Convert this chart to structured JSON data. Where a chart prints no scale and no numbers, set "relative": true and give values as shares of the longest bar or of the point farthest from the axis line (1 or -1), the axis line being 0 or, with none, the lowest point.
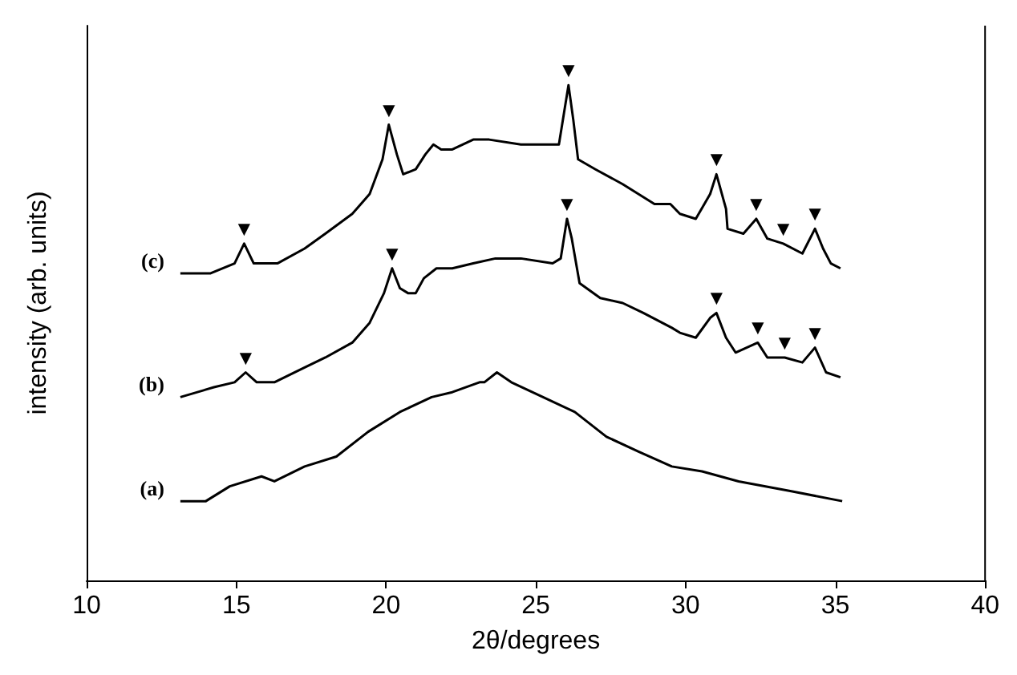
{
  "chart_data": {
    "type": "line",
    "relative": true,
    "xlabel": "2θ/degrees",
    "ylabel": "intensity (arb. units)",
    "xlim": [
      10,
      40
    ],
    "xticks": [
      10,
      15,
      20,
      25,
      30,
      35,
      40
    ],
    "tick_labels": "x",
    "series": [
      {
        "color": "#000000",
        "x": [
          13.13,
          13.98,
          14.78,
          15.84,
          16.27,
          17.28,
          18.34,
          19.4,
          20.46,
          21.52,
          22.21,
          23.12,
          23.28,
          23.7,
          24.18,
          25.24,
          26.3,
          27.36,
          28.43,
          29.54,
          30.55,
          31.77,
          33.53,
          35.23
        ],
        "values": [
          0.16,
          0.16,
          0.19,
          0.21,
          0.2,
          0.23,
          0.25,
          0.3,
          0.34,
          0.37,
          0.38,
          0.4,
          0.4,
          0.42,
          0.4,
          0.37,
          0.34,
          0.29,
          0.26,
          0.23,
          0.22,
          0.2,
          0.18,
          0.16
        ]
      },
      {
        "color": "#000000",
        "x": [
          13.13,
          14.25,
          14.94,
          15.31,
          15.68,
          16.27,
          17.28,
          17.97,
          18.87,
          19.45,
          19.93,
          20.2,
          20.46,
          20.73,
          20.99,
          21.26,
          21.68,
          22.21,
          22.91,
          23.65,
          24.5,
          25.56,
          25.83,
          26.04,
          26.2,
          26.46,
          27.15,
          27.9,
          28.59,
          29.54,
          29.81,
          30.34,
          30.82,
          31.03,
          31.35,
          31.67,
          32.04,
          32.41,
          32.73,
          33.31,
          33.9,
          34.32,
          34.69,
          35.17
        ],
        "values": [
          0.37,
          0.39,
          0.4,
          0.42,
          0.4,
          0.4,
          0.43,
          0.45,
          0.48,
          0.52,
          0.58,
          0.63,
          0.59,
          0.58,
          0.58,
          0.61,
          0.63,
          0.63,
          0.64,
          0.65,
          0.65,
          0.64,
          0.65,
          0.73,
          0.69,
          0.6,
          0.57,
          0.56,
          0.54,
          0.51,
          0.5,
          0.49,
          0.53,
          0.54,
          0.49,
          0.46,
          0.47,
          0.48,
          0.45,
          0.45,
          0.44,
          0.47,
          0.42,
          0.41
        ]
      },
      {
        "color": "#000000",
        "x": [
          13.13,
          14.14,
          14.94,
          15.26,
          15.58,
          16.37,
          17.28,
          17.97,
          18.87,
          19.45,
          19.88,
          20.09,
          20.36,
          20.57,
          20.99,
          21.31,
          21.58,
          21.84,
          22.21,
          22.91,
          23.44,
          24.5,
          25.77,
          25.93,
          26.09,
          26.25,
          26.41,
          26.99,
          27.9,
          28.96,
          29.49,
          29.81,
          30.34,
          30.82,
          31.03,
          31.35,
          31.4,
          31.93,
          32.36,
          32.73,
          33.26,
          33.9,
          34.32,
          34.59,
          34.85,
          35.17
        ],
        "values": [
          0.62,
          0.62,
          0.64,
          0.68,
          0.64,
          0.64,
          0.67,
          0.7,
          0.74,
          0.78,
          0.85,
          0.92,
          0.86,
          0.82,
          0.83,
          0.86,
          0.88,
          0.87,
          0.87,
          0.89,
          0.89,
          0.88,
          0.88,
          0.94,
          1,
          0.93,
          0.85,
          0.83,
          0.8,
          0.76,
          0.76,
          0.74,
          0.73,
          0.78,
          0.82,
          0.75,
          0.71,
          0.7,
          0.73,
          0.69,
          0.68,
          0.66,
          0.71,
          0.67,
          0.64,
          0.63
        ]
      }
    ],
    "annotations": [
      "(a)",
      "(b)",
      "(c)",
      {
        "text": "▼",
        "x": 15.31,
        "y": 0.42
      },
      {
        "text": "▼",
        "x": 20.2,
        "y": 0.63
      },
      {
        "text": "▼",
        "x": 26.04,
        "y": 0.73
      },
      {
        "text": "▼",
        "x": 31.03,
        "y": 0.54
      },
      {
        "text": "▼",
        "x": 32.41,
        "y": 0.48
      },
      {
        "text": "▼",
        "x": 33.31,
        "y": 0.45
      },
      {
        "text": "▼",
        "x": 34.32,
        "y": 0.47
      },
      {
        "text": "▼",
        "x": 15.26,
        "y": 0.68
      },
      {
        "text": "▼",
        "x": 20.09,
        "y": 0.92
      },
      {
        "text": "▼",
        "x": 26.09,
        "y": 1
      },
      {
        "text": "▼",
        "x": 31.03,
        "y": 0.82
      },
      {
        "text": "▼",
        "x": 32.36,
        "y": 0.73
      },
      {
        "text": "▼",
        "x": 33.26,
        "y": 0.68
      },
      {
        "text": "▼",
        "x": 34.32,
        "y": 0.71
      }
    ]
  }
}
